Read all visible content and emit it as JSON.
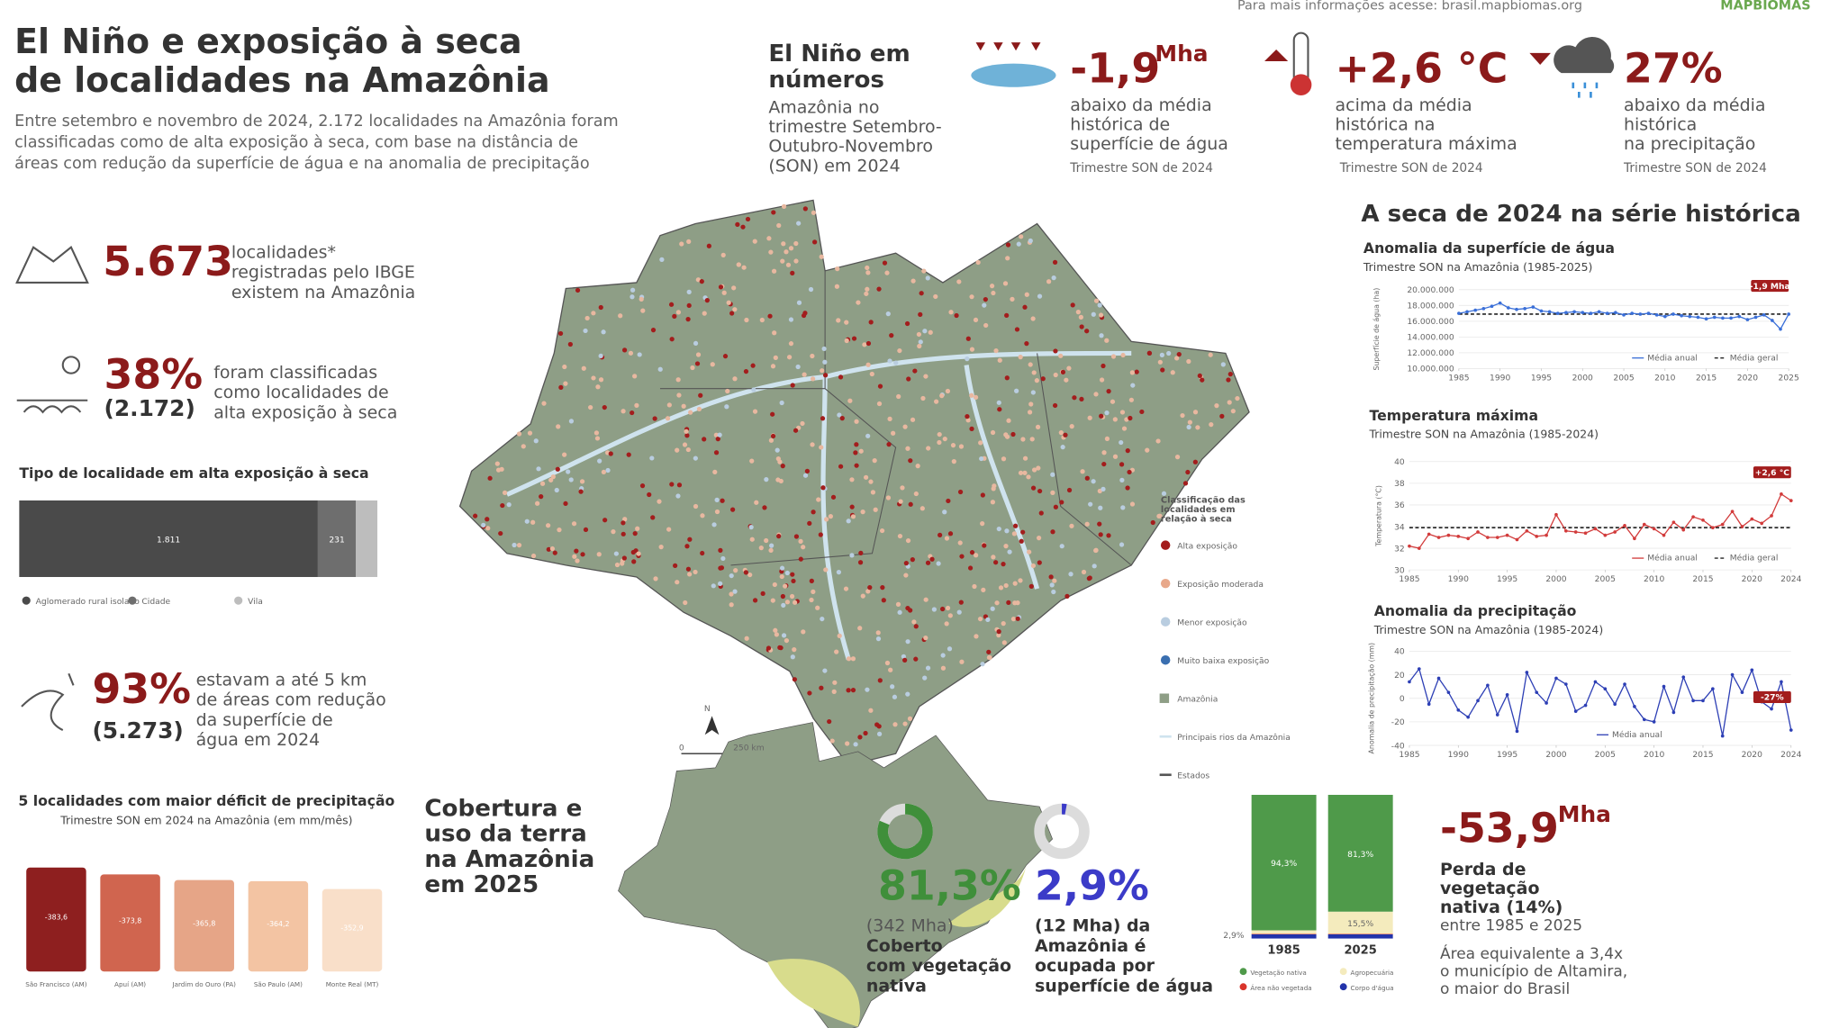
{
  "header": {
    "title": [
      "El Niño e exposição à seca",
      "de localidades na Amazônia"
    ],
    "intro": [
      "Entre setembro e novembro de 2024, 2.172 localidades na Amazônia foram",
      "classificadas como de alta exposição à seca, com base na distância de",
      "áreas com redução da superfície de água e na anomalia de precipitação"
    ],
    "link": "Para mais informações acesse: brasil.mapbiomas.org",
    "logo": "MAPBIOMAS"
  },
  "numbers": {
    "title": [
      "El Niño em",
      "números"
    ],
    "subtitle": [
      "Amazônia no",
      "trimestre Setembro-",
      "Outubro-Novembro",
      "(SON) em 2024"
    ],
    "stats": [
      {
        "value": "-1,9",
        "unit": "Mha",
        "lines": [
          "abaixo da média",
          "histórica de",
          "superfície de água"
        ],
        "period": "Trimestre SON de 2024"
      },
      {
        "value": "+2,6 °C",
        "lines": [
          "acima da média",
          "histórica na",
          "temperatura máxima"
        ],
        "period": "Trimestre SON de 2024"
      },
      {
        "value": "27%",
        "lines": [
          "abaixo da média",
          "histórica",
          "na precipitação"
        ],
        "period": "Trimestre SON de 2024"
      }
    ]
  },
  "left": {
    "localities": {
      "value": "5.673",
      "lines": [
        "localidades*",
        "registradas pelo IBGE",
        "existem na Amazônia"
      ]
    },
    "high": {
      "value": "38%",
      "count": "(2.172)",
      "lines": [
        "foram classificadas",
        "como localidades de",
        "alta exposição à seca"
      ]
    },
    "water": {
      "value": "93%",
      "count": "(5.273)",
      "lines": [
        "estavam a até 5 km",
        "de áreas com redução",
        "da superfície de",
        "água em 2024"
      ]
    }
  },
  "map": {
    "legend_title": [
      "Classificação das",
      "localidades em",
      "relação à seca"
    ],
    "legend": [
      {
        "label": "Alta exposição",
        "color": "#a31d1d"
      },
      {
        "label": "Exposição moderada",
        "color": "#e8a88a"
      },
      {
        "label": "Menor exposição",
        "color": "#b9cde0"
      },
      {
        "label": "Muito baixa exposição",
        "color": "#3a6fb0"
      },
      {
        "label": "Amazônia",
        "color": "#8e9e86"
      },
      {
        "label": "Principais rios da Amazônia",
        "color": "#cfe3ee"
      },
      {
        "label": "Estados",
        "color": "#555555"
      }
    ],
    "north": "N",
    "scale": [
      "0",
      "250 km"
    ]
  },
  "series_title": "A seca de 2024 na série histórica",
  "cover": {
    "title": [
      "Cobertura e",
      "uso da terra",
      "na Amazônia",
      "em 2025"
    ],
    "native": {
      "sub": "(342 Mha)",
      "lines": [
        "Coberto",
        "com vegetação",
        "nativa"
      ]
    },
    "water": {
      "lines": [
        "(12 Mha) da",
        "Amazônia é",
        "ocupada por",
        "superfície de água"
      ]
    },
    "loss": {
      "value": "-53,9",
      "unit": "Mha",
      "lines": [
        "Perda de",
        "vegetação",
        "nativa (14%)"
      ],
      "period": "entre 1985 e 2025",
      "note": [
        "Área equivalente a 3,4x",
        "o município de Altamira,",
        "o maior do Brasil"
      ]
    }
  },
  "chart_data": [
    {
      "type": "bar",
      "orientation": "horizontal",
      "stacked": true,
      "title": "Tipo de localidade em alta exposição à seca",
      "categories": [
        "Aglomerado rural isolado",
        "Cidade",
        "Vila"
      ],
      "values": [
        1811,
        231,
        130
      ],
      "value_labels": [
        "1.811",
        "231",
        null
      ],
      "colors": [
        "#4a4a4a",
        "#6e6e6e",
        "#bdbdbd"
      ],
      "xlim": [
        0,
        2172
      ]
    },
    {
      "type": "bar",
      "title": "5 localidades com maior déficit de precipitação",
      "subtitle": "Trimestre SON em 2024 na Amazônia (em mm/mês)",
      "categories": [
        "São Francisco (AM)",
        "Apuí (AM)",
        "Jardim do Ouro (PA)",
        "São Paulo (AM)",
        "Monte Real (MT)"
      ],
      "values": [
        -383.6,
        -373.8,
        -365.8,
        -364.2,
        -352.9
      ],
      "value_labels": [
        "-383,6",
        "-373,8",
        "-365,8",
        "-364,2",
        "-352,9"
      ],
      "colors": [
        "#8e1f1f",
        "#d0654f",
        "#e6a587",
        "#f3c4a3",
        "#f9dfc9"
      ],
      "ylim": [
        0,
        -400
      ]
    },
    {
      "type": "line",
      "title": "Anomalia da superfície de água",
      "subtitle": "Trimestre SON na Amazônia (1985-2025)",
      "y_label": "Superfície de água (ha)",
      "x": [
        1985,
        1986,
        1987,
        1988,
        1989,
        1990,
        1991,
        1992,
        1993,
        1994,
        1995,
        1996,
        1997,
        1998,
        1999,
        2000,
        2001,
        2002,
        2003,
        2004,
        2005,
        2006,
        2007,
        2008,
        2009,
        2010,
        2011,
        2012,
        2013,
        2014,
        2015,
        2016,
        2017,
        2018,
        2019,
        2020,
        2021,
        2022,
        2023,
        2024,
        2025
      ],
      "series": [
        {
          "name": "Média anual",
          "color": "#3a6fd8",
          "values": [
            17000000,
            17200000,
            17400000,
            17600000,
            17900000,
            18300000,
            17700000,
            17500000,
            17600000,
            17800000,
            17300000,
            17200000,
            17000000,
            17100000,
            17200000,
            17100000,
            17000000,
            17200000,
            17000000,
            17100000,
            16800000,
            17000000,
            16900000,
            17000000,
            16800000,
            16600000,
            16900000,
            16700000,
            16600000,
            16500000,
            16300000,
            16500000,
            16400000,
            16400000,
            16600000,
            16200000,
            16500000,
            16800000,
            16100000,
            15000000,
            16900000
          ]
        }
      ],
      "mean_line": {
        "name": "Média geral",
        "value": 16900000
      },
      "annotation": "-1,9 Mha",
      "xlim": [
        1985,
        2025
      ],
      "xticks": [
        1985,
        1990,
        1995,
        2000,
        2005,
        2010,
        2015,
        2020,
        2025
      ],
      "ylim": [
        10000000,
        20000000
      ],
      "yticks": [
        {
          "value": 10000000,
          "label": "10.000.000"
        },
        {
          "value": 12000000,
          "label": "12.000.000"
        },
        {
          "value": 14000000,
          "label": "14.000.000"
        },
        {
          "value": 16000000,
          "label": "16.000.000"
        },
        {
          "value": 18000000,
          "label": "18.000.000"
        },
        {
          "value": 20000000,
          "label": "20.000.000"
        }
      ],
      "grid": true
    },
    {
      "type": "line",
      "title": "Temperatura máxima",
      "subtitle": "Trimestre SON na Amazônia (1985-2024)",
      "y_label": "Temperatura (°C)",
      "x": [
        1985,
        1986,
        1987,
        1988,
        1989,
        1990,
        1991,
        1992,
        1993,
        1994,
        1995,
        1996,
        1997,
        1998,
        1999,
        2000,
        2001,
        2002,
        2003,
        2004,
        2005,
        2006,
        2007,
        2008,
        2009,
        2010,
        2011,
        2012,
        2013,
        2014,
        2015,
        2016,
        2017,
        2018,
        2019,
        2020,
        2021,
        2022,
        2023,
        2024
      ],
      "series": [
        {
          "name": "Média anual",
          "color": "#d23b3b",
          "values": [
            32.2,
            32.0,
            33.3,
            33.0,
            33.2,
            33.1,
            32.9,
            33.5,
            33.0,
            33.0,
            33.2,
            32.8,
            33.6,
            33.1,
            33.2,
            35.1,
            33.6,
            33.5,
            33.4,
            33.8,
            33.2,
            33.5,
            34.1,
            32.9,
            34.2,
            33.8,
            33.2,
            34.4,
            33.7,
            34.9,
            34.6,
            33.9,
            34.2,
            35.4,
            34.0,
            34.7,
            34.3,
            35.0,
            37.0,
            36.4
          ]
        }
      ],
      "mean_line": {
        "name": "Média geral",
        "value": 33.9
      },
      "annotation": "+2,6 °C",
      "xlim": [
        1985,
        2024
      ],
      "xticks": [
        1985,
        1990,
        1995,
        2000,
        2005,
        2010,
        2015,
        2020,
        2024
      ],
      "ylim": [
        30,
        40
      ],
      "yticks": [
        30,
        32,
        34,
        36,
        38,
        40
      ],
      "grid": true
    },
    {
      "type": "line",
      "title": "Anomalia da precipitação",
      "subtitle": "Trimestre SON na Amazônia (1985-2024)",
      "y_label": "Anomalia de precipitação (mm)",
      "x": [
        1985,
        1986,
        1987,
        1988,
        1989,
        1990,
        1991,
        1992,
        1993,
        1994,
        1995,
        1996,
        1997,
        1998,
        1999,
        2000,
        2001,
        2002,
        2003,
        2004,
        2005,
        2006,
        2007,
        2008,
        2009,
        2010,
        2011,
        2012,
        2013,
        2014,
        2015,
        2016,
        2017,
        2018,
        2019,
        2020,
        2021,
        2022,
        2023,
        2024
      ],
      "series": [
        {
          "name": "Média anual",
          "color": "#2d3fb5",
          "values": [
            14,
            25,
            -5,
            17,
            5,
            -10,
            -16,
            -2,
            11,
            -14,
            3,
            -28,
            22,
            5,
            -4,
            17,
            12,
            -11,
            -6,
            14,
            8,
            -5,
            12,
            -7,
            -18,
            -20,
            10,
            -12,
            18,
            -2,
            -2,
            8,
            -32,
            20,
            5,
            24,
            -3,
            -9,
            14,
            -27
          ]
        }
      ],
      "annotation": "-27%",
      "xlim": [
        1985,
        2024
      ],
      "xticks": [
        1985,
        1990,
        1995,
        2000,
        2005,
        2010,
        2015,
        2020,
        2024
      ],
      "ylim": [
        -40,
        40
      ],
      "yticks": [
        -40,
        -20,
        0,
        20,
        40
      ],
      "grid": true
    },
    {
      "type": "pie",
      "values": [
        81.3
      ],
      "value_labels": [
        "81,3%"
      ],
      "color": "#3f8f3a"
    },
    {
      "type": "pie",
      "values": [
        2.9
      ],
      "value_labels": [
        "2,9%"
      ],
      "color": "#3b3bc8"
    },
    {
      "type": "bar",
      "stacked": true,
      "categories": [
        "1985",
        "2025"
      ],
      "series": [
        {
          "name": "Vegetação nativa",
          "color": "#4f9a4a",
          "values": [
            94.3,
            81.3
          ],
          "value_labels": [
            "94,3%",
            "81,3%"
          ]
        },
        {
          "name": "Agropecuária",
          "color": "#f4ebbd",
          "values": [
            2.5,
            15.5
          ],
          "value_labels": [
            null,
            "15,5%"
          ]
        },
        {
          "name": "Área não vegetada",
          "color": "#d9342b",
          "values": [
            0.3,
            0.3
          ]
        },
        {
          "name": "Corpo d'água",
          "color": "#2233aa",
          "values": [
            2.9,
            2.9
          ],
          "value_labels": [
            "2,9%",
            null
          ]
        }
      ],
      "ylim": [
        0,
        100
      ]
    }
  ]
}
